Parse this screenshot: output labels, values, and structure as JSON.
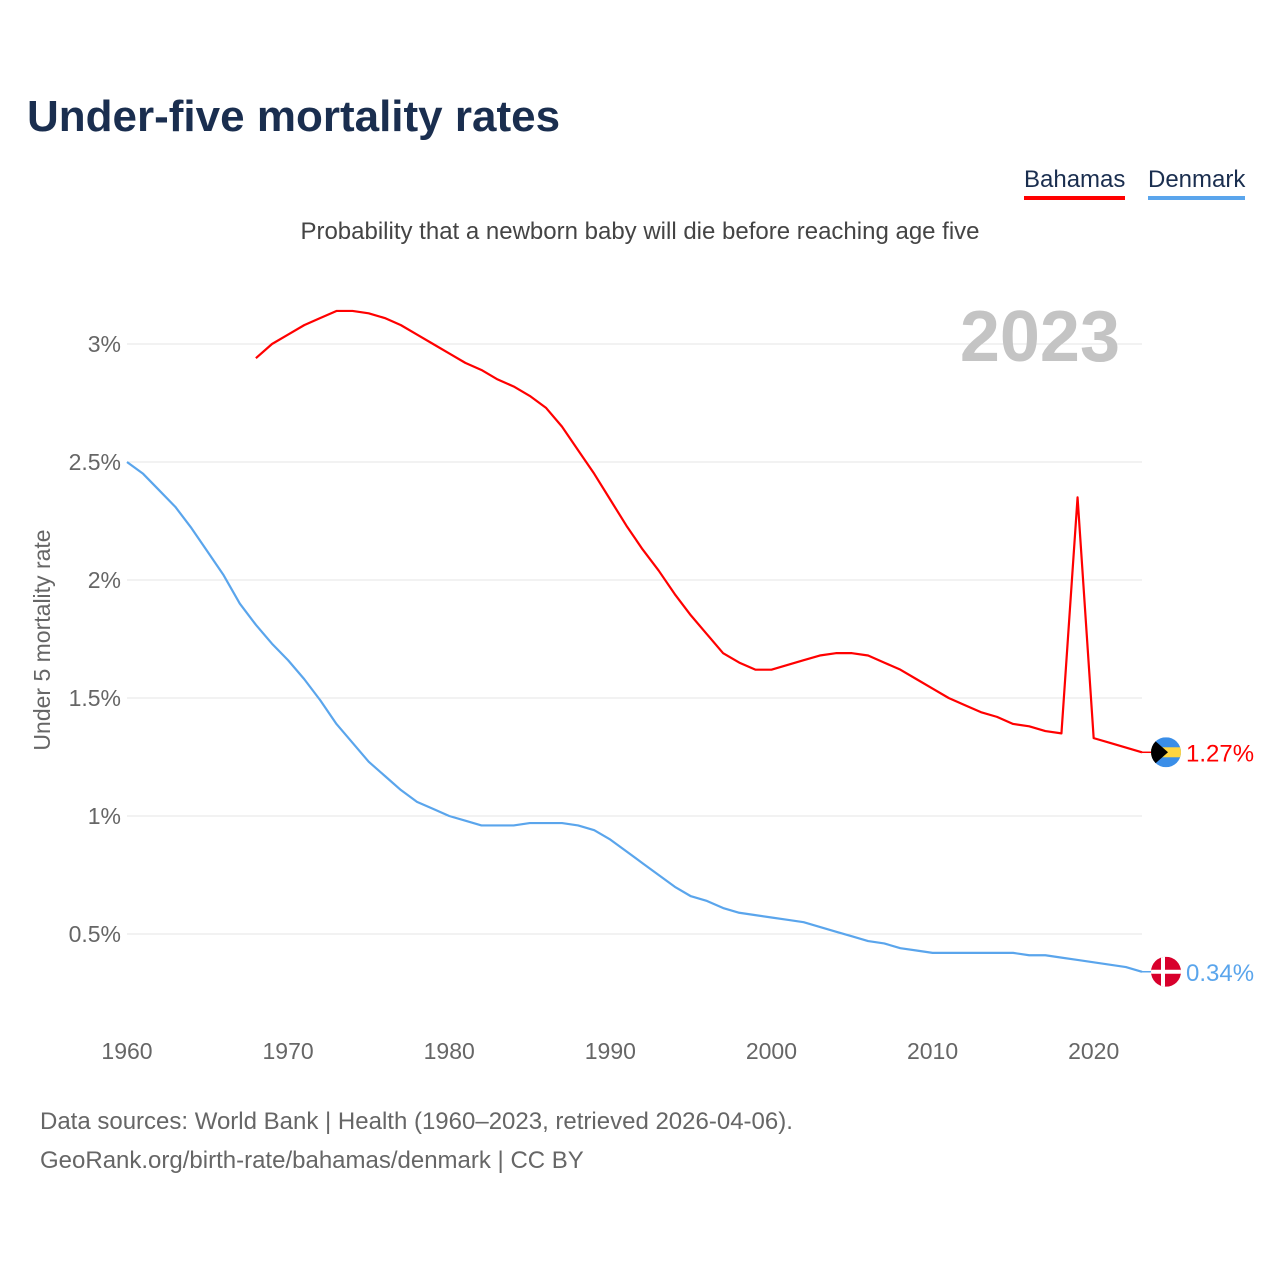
{
  "title": "Under-five mortality rates",
  "subtitle": "Probability that a newborn baby will die before reaching age five",
  "legend": [
    {
      "label": "Bahamas",
      "color": "#ff0000"
    },
    {
      "label": "Denmark",
      "color": "#5aa5ec"
    }
  ],
  "footer": {
    "line1": "Data sources: World Bank | Health (1960–2023, retrieved 2026-04-06).",
    "line2": "GeoRank.org/birth-rate/bahamas/denmark | CC BY"
  },
  "chart_data": {
    "type": "line",
    "title": "Under-five mortality rates",
    "ylabel": "Under 5 mortality rate",
    "xlabel": "",
    "year_label": "2023",
    "xlim": [
      1960,
      2023
    ],
    "ylim": [
      0,
      3.3
    ],
    "x_ticks": [
      1960,
      1970,
      1980,
      1990,
      2000,
      2010,
      2020
    ],
    "y_ticks": [
      0.5,
      1,
      1.5,
      2,
      2.5,
      3
    ],
    "y_tick_labels": [
      "0.5%",
      "1%",
      "1.5%",
      "2%",
      "2.5%",
      "3%"
    ],
    "grid": true,
    "legend_position": "top-right",
    "series": [
      {
        "name": "Bahamas",
        "color": "#ff0000",
        "start_year": 1968,
        "end_label": "1.27%",
        "flag": "bahamas-flag",
        "values": [
          2.94,
          3.0,
          3.04,
          3.08,
          3.11,
          3.14,
          3.14,
          3.13,
          3.11,
          3.08,
          3.04,
          3.0,
          2.96,
          2.92,
          2.89,
          2.85,
          2.82,
          2.78,
          2.73,
          2.65,
          2.55,
          2.45,
          2.34,
          2.23,
          2.13,
          2.04,
          1.94,
          1.85,
          1.77,
          1.69,
          1.65,
          1.62,
          1.62,
          1.64,
          1.66,
          1.68,
          1.69,
          1.69,
          1.68,
          1.65,
          1.62,
          1.58,
          1.54,
          1.5,
          1.47,
          1.44,
          1.42,
          1.39,
          1.38,
          1.36,
          1.35,
          2.35,
          1.33,
          1.31,
          1.29,
          1.27
        ]
      },
      {
        "name": "Denmark",
        "color": "#5aa5ec",
        "start_year": 1960,
        "end_label": "0.34%",
        "flag": "denmark-flag",
        "values": [
          2.5,
          2.45,
          2.38,
          2.31,
          2.22,
          2.12,
          2.02,
          1.9,
          1.81,
          1.73,
          1.66,
          1.58,
          1.49,
          1.39,
          1.31,
          1.23,
          1.17,
          1.11,
          1.06,
          1.03,
          1.0,
          0.98,
          0.96,
          0.96,
          0.96,
          0.97,
          0.97,
          0.97,
          0.96,
          0.94,
          0.9,
          0.85,
          0.8,
          0.75,
          0.7,
          0.66,
          0.64,
          0.61,
          0.59,
          0.58,
          0.57,
          0.56,
          0.55,
          0.53,
          0.51,
          0.49,
          0.47,
          0.46,
          0.44,
          0.43,
          0.42,
          0.42,
          0.42,
          0.42,
          0.42,
          0.42,
          0.41,
          0.41,
          0.4,
          0.39,
          0.38,
          0.37,
          0.36,
          0.34
        ]
      }
    ]
  }
}
